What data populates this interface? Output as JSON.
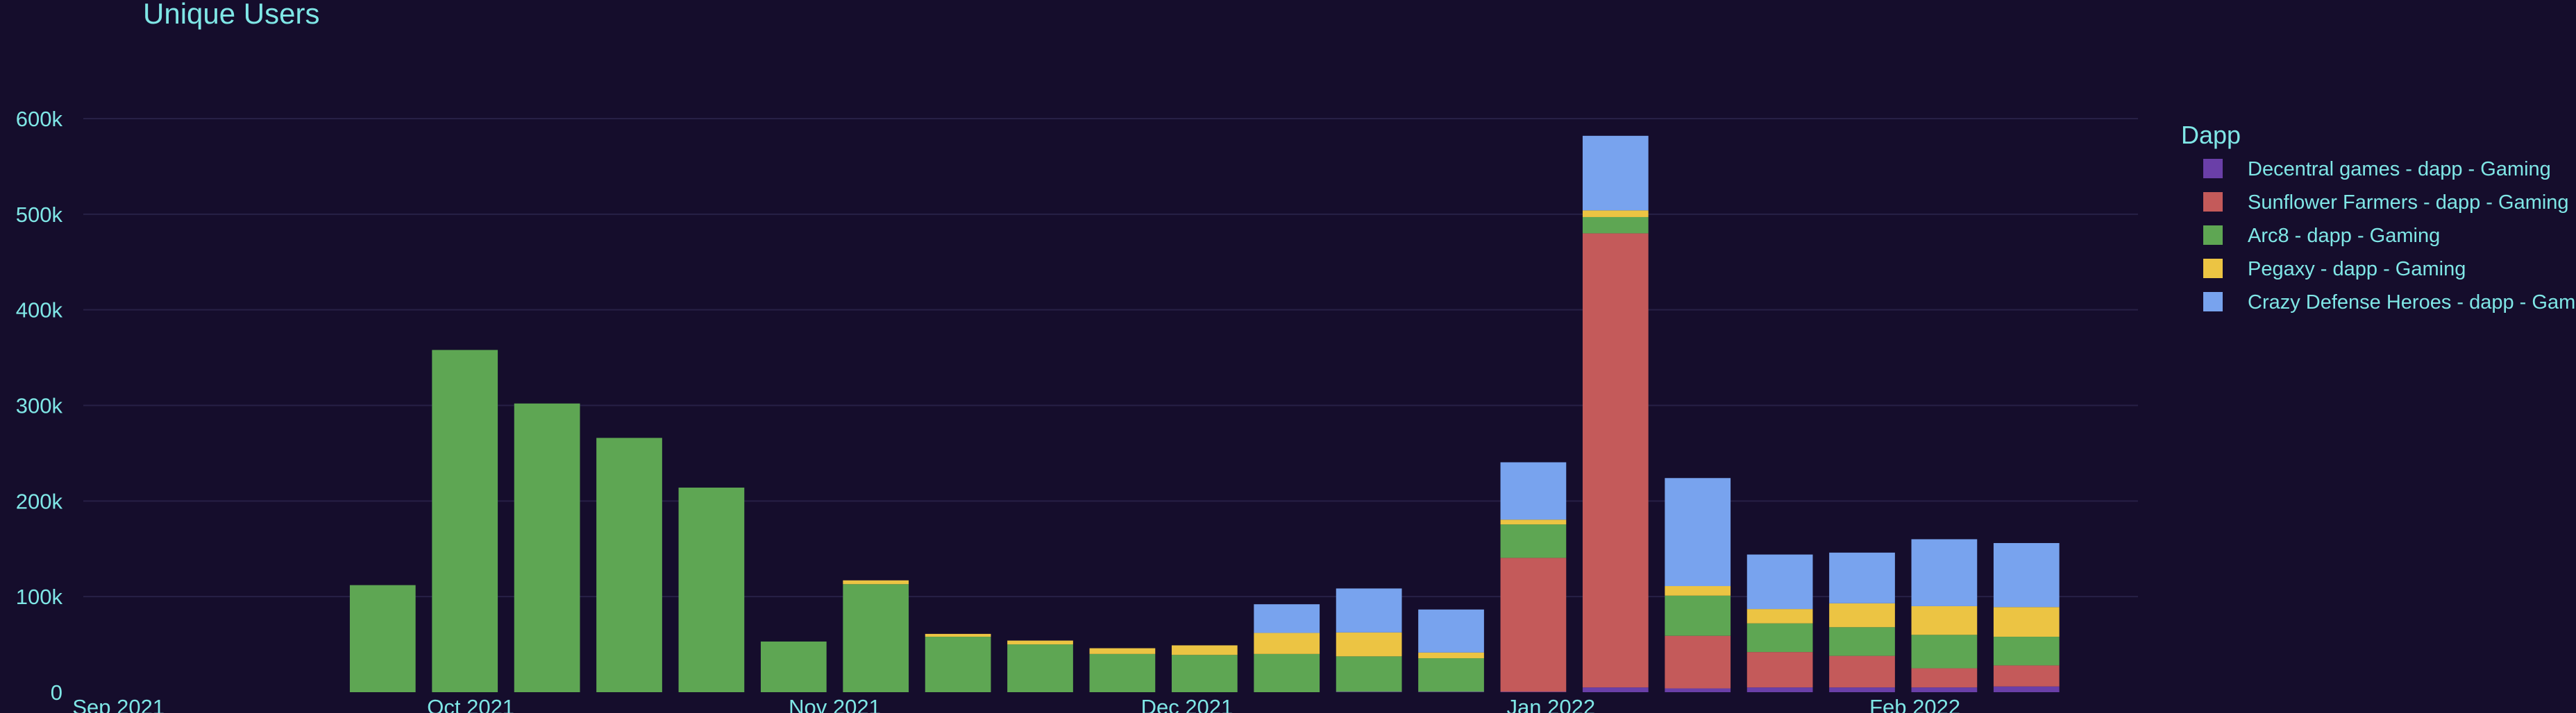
{
  "chart_data": {
    "type": "bar",
    "stacked": true,
    "title": "Unique Users",
    "legend_title": "Dapp",
    "legend_position": "top-right",
    "grid": true,
    "ylim": [
      0,
      640000
    ],
    "y_ticks": [
      {
        "value": 0,
        "label": "0"
      },
      {
        "value": 100000,
        "label": "100k"
      },
      {
        "value": 200000,
        "label": "200k"
      },
      {
        "value": 300000,
        "label": "300k"
      },
      {
        "value": 400000,
        "label": "400k"
      },
      {
        "value": 500000,
        "label": "500k"
      },
      {
        "value": 600000,
        "label": "600k"
      }
    ],
    "x_ticks": [
      {
        "date": "2021-09-01",
        "label": "Sep 2021"
      },
      {
        "date": "2021-10-01",
        "label": "Oct 2021"
      },
      {
        "date": "2021-11-01",
        "label": "Nov 2021"
      },
      {
        "date": "2021-12-01",
        "label": "Dec 2021"
      },
      {
        "date": "2022-01-01",
        "label": "Jan 2022"
      },
      {
        "date": "2022-02-01",
        "label": "Feb 2022"
      }
    ],
    "x_range": [
      "2021-08-29",
      "2022-02-20"
    ],
    "categories": [
      "2021-09-20",
      "2021-09-27",
      "2021-10-04",
      "2021-10-11",
      "2021-10-18",
      "2021-10-25",
      "2021-11-01",
      "2021-11-08",
      "2021-11-15",
      "2021-11-22",
      "2021-11-29",
      "2021-12-06",
      "2021-12-13",
      "2021-12-20",
      "2021-12-27",
      "2022-01-03",
      "2022-01-10",
      "2022-01-17",
      "2022-01-24",
      "2022-01-31",
      "2022-02-07"
    ],
    "series": [
      {
        "name": "Decentral games - dapp - Gaming",
        "color": "#6a3fa8",
        "values": [
          0,
          0,
          0,
          0,
          0,
          0,
          0,
          0,
          0,
          0,
          0,
          0,
          500,
          500,
          500,
          5000,
          4000,
          5000,
          5000,
          5000,
          6000
        ]
      },
      {
        "name": "Sunflower Farmers - dapp - Gaming",
        "color": "#c45a5a",
        "values": [
          0,
          0,
          0,
          0,
          0,
          0,
          0,
          0,
          0,
          0,
          0,
          0,
          0,
          0,
          140000,
          475000,
          55000,
          37000,
          33000,
          20000,
          22000
        ]
      },
      {
        "name": "Arc8 - dapp - Gaming",
        "color": "#5ea653",
        "values": [
          112000,
          358000,
          302000,
          266000,
          214000,
          53000,
          113000,
          58000,
          50000,
          40000,
          39000,
          40000,
          37000,
          35000,
          35000,
          17000,
          42000,
          30000,
          30000,
          35000,
          30000
        ]
      },
      {
        "name": "Pegaxy - dapp - Gaming",
        "color": "#ecc443",
        "values": [
          0,
          0,
          0,
          0,
          0,
          0,
          4000,
          3000,
          4000,
          6000,
          10000,
          22000,
          25000,
          6000,
          5000,
          7000,
          10000,
          15000,
          25000,
          30000,
          31000
        ]
      },
      {
        "name": "Crazy Defense Heroes - dapp - Gaming",
        "color": "#78a3ee",
        "values": [
          0,
          0,
          0,
          0,
          0,
          0,
          0,
          0,
          0,
          0,
          0,
          30000,
          46000,
          45000,
          60000,
          78000,
          113000,
          57000,
          53000,
          70000,
          67000
        ]
      }
    ]
  }
}
